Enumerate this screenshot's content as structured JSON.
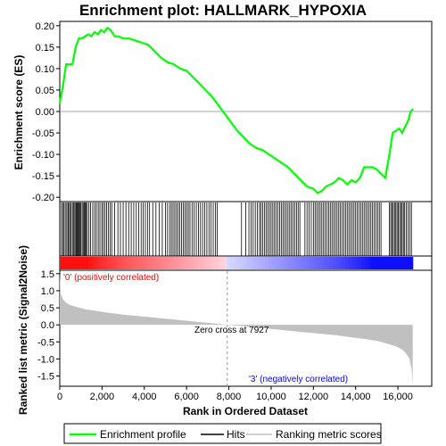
{
  "chart_data": [
    {
      "type": "line",
      "title": "Enrichment plot: HALLMARK_HYPOXIA",
      "ylabel": "Enrichment score (ES)",
      "ylim": [
        -0.21,
        0.21
      ],
      "yticks": [
        "0.20",
        "0.15",
        "0.10",
        "0.05",
        "0.00",
        "-0.05",
        "-0.10",
        "-0.15",
        "-0.20"
      ],
      "ytick_values": [
        0.2,
        0.15,
        0.1,
        0.05,
        0.0,
        -0.05,
        -0.1,
        -0.15,
        -0.2
      ],
      "xlim": [
        0,
        16700
      ],
      "series": [
        {
          "name": "Enrichment profile",
          "color": "#00ff00",
          "x": [
            0,
            150,
            300,
            450,
            600,
            750,
            900,
            1050,
            1200,
            1350,
            1500,
            1650,
            1800,
            1950,
            2100,
            2250,
            2400,
            2600,
            2800,
            3000,
            3300,
            3600,
            3900,
            4200,
            4500,
            4800,
            5100,
            5400,
            5700,
            6000,
            6300,
            6600,
            6900,
            7200,
            7500,
            7800,
            8100,
            8400,
            8700,
            9000,
            9300,
            9600,
            9900,
            10200,
            10500,
            10800,
            11100,
            11400,
            11700,
            12000,
            12200,
            12400,
            12600,
            12800,
            13000,
            13200,
            13400,
            13600,
            13800,
            14000,
            14200,
            14400,
            14600,
            14800,
            15000,
            15200,
            15400,
            15600,
            15750,
            15900,
            16050,
            16200,
            16350,
            16500,
            16600,
            16700
          ],
          "values": [
            0.02,
            0.06,
            0.11,
            0.11,
            0.11,
            0.15,
            0.17,
            0.17,
            0.175,
            0.18,
            0.175,
            0.185,
            0.18,
            0.19,
            0.185,
            0.195,
            0.19,
            0.175,
            0.175,
            0.17,
            0.17,
            0.165,
            0.16,
            0.155,
            0.14,
            0.125,
            0.115,
            0.11,
            0.1,
            0.095,
            0.08,
            0.065,
            0.05,
            0.035,
            0.015,
            -0.005,
            -0.025,
            -0.045,
            -0.06,
            -0.075,
            -0.085,
            -0.09,
            -0.1,
            -0.11,
            -0.12,
            -0.13,
            -0.145,
            -0.16,
            -0.175,
            -0.18,
            -0.19,
            -0.185,
            -0.175,
            -0.17,
            -0.165,
            -0.155,
            -0.16,
            -0.17,
            -0.16,
            -0.165,
            -0.155,
            -0.13,
            -0.13,
            -0.13,
            -0.135,
            -0.145,
            -0.155,
            -0.1,
            -0.05,
            -0.045,
            -0.04,
            -0.05,
            -0.035,
            -0.02,
            0.0,
            0.005
          ]
        }
      ]
    },
    {
      "type": "heatmap",
      "series": [
        {
          "name": "Hits",
          "color": "#000000",
          "x": [
            80,
            140,
            200,
            260,
            330,
            390,
            420,
            480,
            540,
            600,
            660,
            710,
            760,
            800,
            840,
            880,
            920,
            960,
            1000,
            1060,
            1110,
            1160,
            1200,
            1250,
            1300,
            1380,
            1460,
            1560,
            1650,
            1730,
            1820,
            1900,
            1990,
            2060,
            2140,
            2220,
            2300,
            2380,
            2460,
            2600,
            2750,
            2870,
            3000,
            3130,
            3260,
            3380,
            3500,
            3620,
            3740,
            3850,
            3950,
            4050,
            4150,
            4250,
            4400,
            4550,
            4700,
            4850,
            5000,
            5100,
            5200,
            5280,
            5360,
            5440,
            5520,
            5600,
            5680,
            5760,
            5840,
            5920,
            6000,
            6080,
            6160,
            6260,
            6360,
            6460,
            6560,
            6660,
            6760,
            6860,
            6960,
            7060,
            7160,
            7260,
            7360,
            7450,
            8600,
            8800,
            8950,
            9050,
            9150,
            9250,
            9350,
            9450,
            9520,
            9600,
            9680,
            9760,
            9840,
            9920,
            10000,
            10080,
            10160,
            10240,
            10320,
            10400,
            10480,
            10560,
            10640,
            10720,
            10800,
            10880,
            10960,
            11040,
            11120,
            11200,
            11280,
            11360,
            11600,
            11700,
            11800,
            11900,
            12000,
            12080,
            12160,
            12240,
            12320,
            12400,
            12480,
            12560,
            12640,
            12720,
            12800,
            12880,
            12960,
            13040,
            13120,
            13200,
            13280,
            13360,
            13440,
            13520,
            13600,
            13680,
            13760,
            13840,
            13920,
            14000,
            14080,
            14160,
            14240,
            14320,
            14400,
            14480,
            14560,
            14640,
            14720,
            14800,
            14880,
            14960,
            15040,
            15120,
            15200,
            15600,
            15660,
            15720,
            15780,
            15840,
            15900,
            15960,
            16020,
            16080,
            16140,
            16200,
            16260,
            16320,
            16400,
            16480,
            16560,
            16640
          ]
        }
      ]
    },
    {
      "type": "area",
      "ylabel": "Ranked list metric (Signal2Noise)",
      "xlabel": "Rank in Ordered Dataset",
      "ylim": [
        -1.8,
        1.6
      ],
      "yticks": [
        "1.5",
        "1.0",
        "0.5",
        "0.0",
        "-0.5",
        "-1.0",
        "-1.5"
      ],
      "ytick_values": [
        1.5,
        1.0,
        0.5,
        0.0,
        -0.5,
        -1.0,
        -1.5
      ],
      "xlim": [
        0,
        17600
      ],
      "xticks": [
        "0",
        "2,000",
        "4,000",
        "6,000",
        "8,000",
        "10,000",
        "12,000",
        "14,000",
        "16,000"
      ],
      "xtick_values": [
        0,
        2000,
        4000,
        6000,
        8000,
        10000,
        12000,
        14000,
        16000
      ],
      "series": [
        {
          "name": "Ranking metric scores",
          "color": "#c0c0c0",
          "x": [
            0,
            50,
            150,
            300,
            500,
            800,
            1200,
            1600,
            2000,
            2500,
            3000,
            3500,
            4000,
            4500,
            5000,
            5500,
            6000,
            6500,
            7000,
            7500,
            7927,
            8500,
            9000,
            9500,
            10000,
            10500,
            11000,
            11500,
            12000,
            12500,
            13000,
            13500,
            14000,
            14500,
            15000,
            15500,
            15900,
            16200,
            16400,
            16550,
            16650,
            16700
          ],
          "values": [
            1.5,
            0.9,
            0.75,
            0.65,
            0.58,
            0.52,
            0.46,
            0.42,
            0.38,
            0.34,
            0.3,
            0.27,
            0.24,
            0.21,
            0.18,
            0.15,
            0.12,
            0.09,
            0.06,
            0.03,
            0.0,
            -0.03,
            -0.06,
            -0.09,
            -0.12,
            -0.15,
            -0.18,
            -0.21,
            -0.24,
            -0.27,
            -0.3,
            -0.34,
            -0.38,
            -0.42,
            -0.47,
            -0.55,
            -0.63,
            -0.72,
            -0.85,
            -1.0,
            -1.3,
            -1.75
          ]
        }
      ],
      "annotations": [
        "'0' (positively correlated)",
        "Zero cross at 7927",
        "'3' (negatively correlated)"
      ],
      "annotation_colors": [
        "#ff0000",
        "#000000",
        "#0000ff"
      ],
      "zero_cross": 7927
    }
  ],
  "legend": {
    "items": [
      {
        "label": "Enrichment profile",
        "color": "#00ff00"
      },
      {
        "label": "Hits",
        "color": "#000000"
      },
      {
        "label": "Ranking metric scores",
        "color": "#c0c0c0"
      }
    ]
  }
}
